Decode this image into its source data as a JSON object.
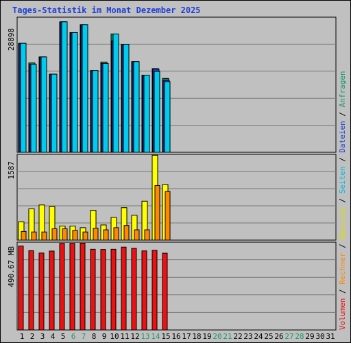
{
  "title": "Tages-Statistik im Monat Dezember 2025",
  "colors": {
    "anfragen": "#119966",
    "dateien": "#2244cc",
    "seiten": "#00ccee",
    "besuche": "#ffff00",
    "rechner": "#ff8800",
    "volumen": "#ee1111",
    "weekend": "#229966",
    "day": "#000000"
  },
  "legend": [
    {
      "label": "Volumen",
      "color": "#ee1111"
    },
    {
      "label": "Rechner",
      "color": "#ff8800"
    },
    {
      "label": "Besuche",
      "color": "#dddd00"
    },
    {
      "label": "Seiten",
      "color": "#00bbdd"
    },
    {
      "label": "Dateien",
      "color": "#2244cc"
    },
    {
      "label": "Anfragen",
      "color": "#119966"
    }
  ],
  "separator": " / ",
  "chart_data": [
    {
      "type": "bar",
      "title": "",
      "ylabel": "28898",
      "ylim": [
        0,
        28898
      ],
      "days": [
        1,
        2,
        3,
        4,
        5,
        6,
        7,
        8,
        9,
        10,
        11,
        12,
        13,
        14,
        15,
        16,
        17,
        18,
        19,
        20,
        21,
        22,
        23,
        24,
        25,
        26,
        27,
        28,
        29,
        30,
        31
      ],
      "weekend_days": [
        6,
        7,
        13,
        14,
        20,
        21,
        27,
        28
      ],
      "series": [
        {
          "name": "Anfragen",
          "values": [
            23300,
            19100,
            20400,
            16700,
            27900,
            25600,
            27300,
            17500,
            19300,
            25300,
            23100,
            19400,
            16500,
            17900,
            15800
          ]
        },
        {
          "name": "Dateien",
          "values": [
            23300,
            18800,
            20400,
            16700,
            27900,
            25600,
            27300,
            17500,
            19000,
            23800,
            23100,
            19400,
            16500,
            17800,
            15400
          ]
        },
        {
          "name": "Seiten",
          "values": [
            23300,
            18800,
            20400,
            16700,
            27900,
            25600,
            27300,
            17500,
            19000,
            25300,
            23100,
            19400,
            16500,
            17300,
            15100
          ]
        }
      ]
    },
    {
      "type": "bar",
      "title": "",
      "ylabel": "1587",
      "ylim": [
        0,
        1587
      ],
      "series": [
        {
          "name": "Besuche",
          "values": [
            340,
            580,
            650,
            620,
            260,
            260,
            230,
            550,
            280,
            420,
            600,
            460,
            720,
            1570,
            1030
          ]
        },
        {
          "name": "Rechner",
          "values": [
            160,
            150,
            150,
            210,
            210,
            180,
            150,
            220,
            190,
            230,
            270,
            190,
            190,
            1010,
            900
          ]
        }
      ]
    },
    {
      "type": "bar",
      "title": "",
      "ylabel": "490.67 MB",
      "ylim": [
        0,
        490.67
      ],
      "series": [
        {
          "name": "Volumen",
          "values": [
            469,
            443,
            430,
            441,
            484,
            484,
            485,
            451,
            450,
            451,
            463,
            456,
            442,
            445,
            429
          ]
        }
      ]
    }
  ]
}
